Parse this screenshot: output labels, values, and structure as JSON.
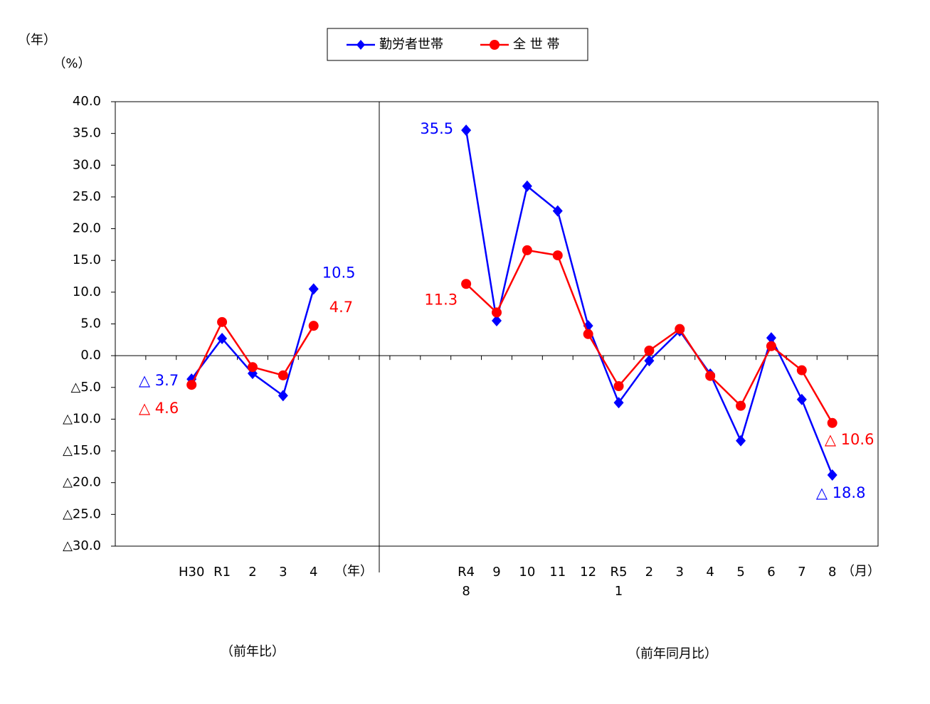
{
  "chart_data": {
    "type": "line",
    "y_top_unit": "（年）",
    "y_unit": "（%）",
    "x_unit_left": "（年）",
    "x_unit_right": "（月）",
    "caption_left": "（前年比）",
    "caption_right": "（前年同月比）",
    "categories": [
      null,
      null,
      [
        "H30"
      ],
      [
        "R1"
      ],
      [
        "2"
      ],
      [
        "3"
      ],
      [
        "4"
      ],
      null,
      null,
      null,
      null,
      [
        "R4",
        "8"
      ],
      [
        "9"
      ],
      [
        "10"
      ],
      [
        "11"
      ],
      [
        "12"
      ],
      [
        "R5",
        "1"
      ],
      [
        "2"
      ],
      [
        "3"
      ],
      [
        "4"
      ],
      [
        "5"
      ],
      [
        "6"
      ],
      [
        "7"
      ],
      [
        "8"
      ],
      null
    ],
    "series": [
      {
        "name": "勤労者世帯",
        "color": "#0000ff",
        "marker": "diamond",
        "values": [
          null,
          null,
          -3.7,
          2.7,
          -2.8,
          -6.3,
          10.5,
          null,
          null,
          null,
          null,
          35.5,
          5.5,
          26.7,
          22.8,
          4.7,
          -7.4,
          -0.8,
          3.9,
          -2.9,
          -13.4,
          2.8,
          -6.9,
          -18.8,
          null
        ],
        "value_labels": [
          null,
          null,
          "△ 3.7",
          null,
          null,
          null,
          "10.5",
          null,
          null,
          null,
          null,
          "35.5",
          null,
          null,
          null,
          null,
          null,
          null,
          null,
          null,
          null,
          null,
          null,
          "△ 18.8",
          null
        ]
      },
      {
        "name": "全 世 帯",
        "color": "#ff0000",
        "marker": "circle",
        "values": [
          null,
          null,
          -4.6,
          5.3,
          -1.8,
          -3.1,
          4.7,
          null,
          null,
          null,
          null,
          11.3,
          6.8,
          16.6,
          15.8,
          3.4,
          -4.8,
          0.8,
          4.2,
          -3.2,
          -7.9,
          1.5,
          -2.3,
          -10.6,
          null
        ],
        "value_labels": [
          null,
          null,
          "△ 4.6",
          null,
          null,
          null,
          "4.7",
          null,
          null,
          null,
          null,
          "11.3",
          null,
          null,
          null,
          null,
          null,
          null,
          null,
          null,
          null,
          null,
          null,
          "△ 10.6",
          null
        ]
      }
    ],
    "ylim": [
      -30,
      40
    ],
    "yticks": [
      {
        "value": -30,
        "label": "△30.0"
      },
      {
        "value": -25,
        "label": "△25.0"
      },
      {
        "value": -20,
        "label": "△20.0"
      },
      {
        "value": -15,
        "label": "△15.0"
      },
      {
        "value": -10,
        "label": "△10.0"
      },
      {
        "value": -5,
        "label": "△5.0"
      },
      {
        "value": 0,
        "label": "0.0"
      },
      {
        "value": 5,
        "label": "5.0"
      },
      {
        "value": 10,
        "label": "10.0"
      },
      {
        "value": 15,
        "label": "15.0"
      },
      {
        "value": 20,
        "label": "20.0"
      },
      {
        "value": 25,
        "label": "25.0"
      },
      {
        "value": 30,
        "label": "30.0"
      },
      {
        "value": 35,
        "label": "35.0"
      },
      {
        "value": 40,
        "label": "40.0"
      }
    ],
    "grid": false
  }
}
